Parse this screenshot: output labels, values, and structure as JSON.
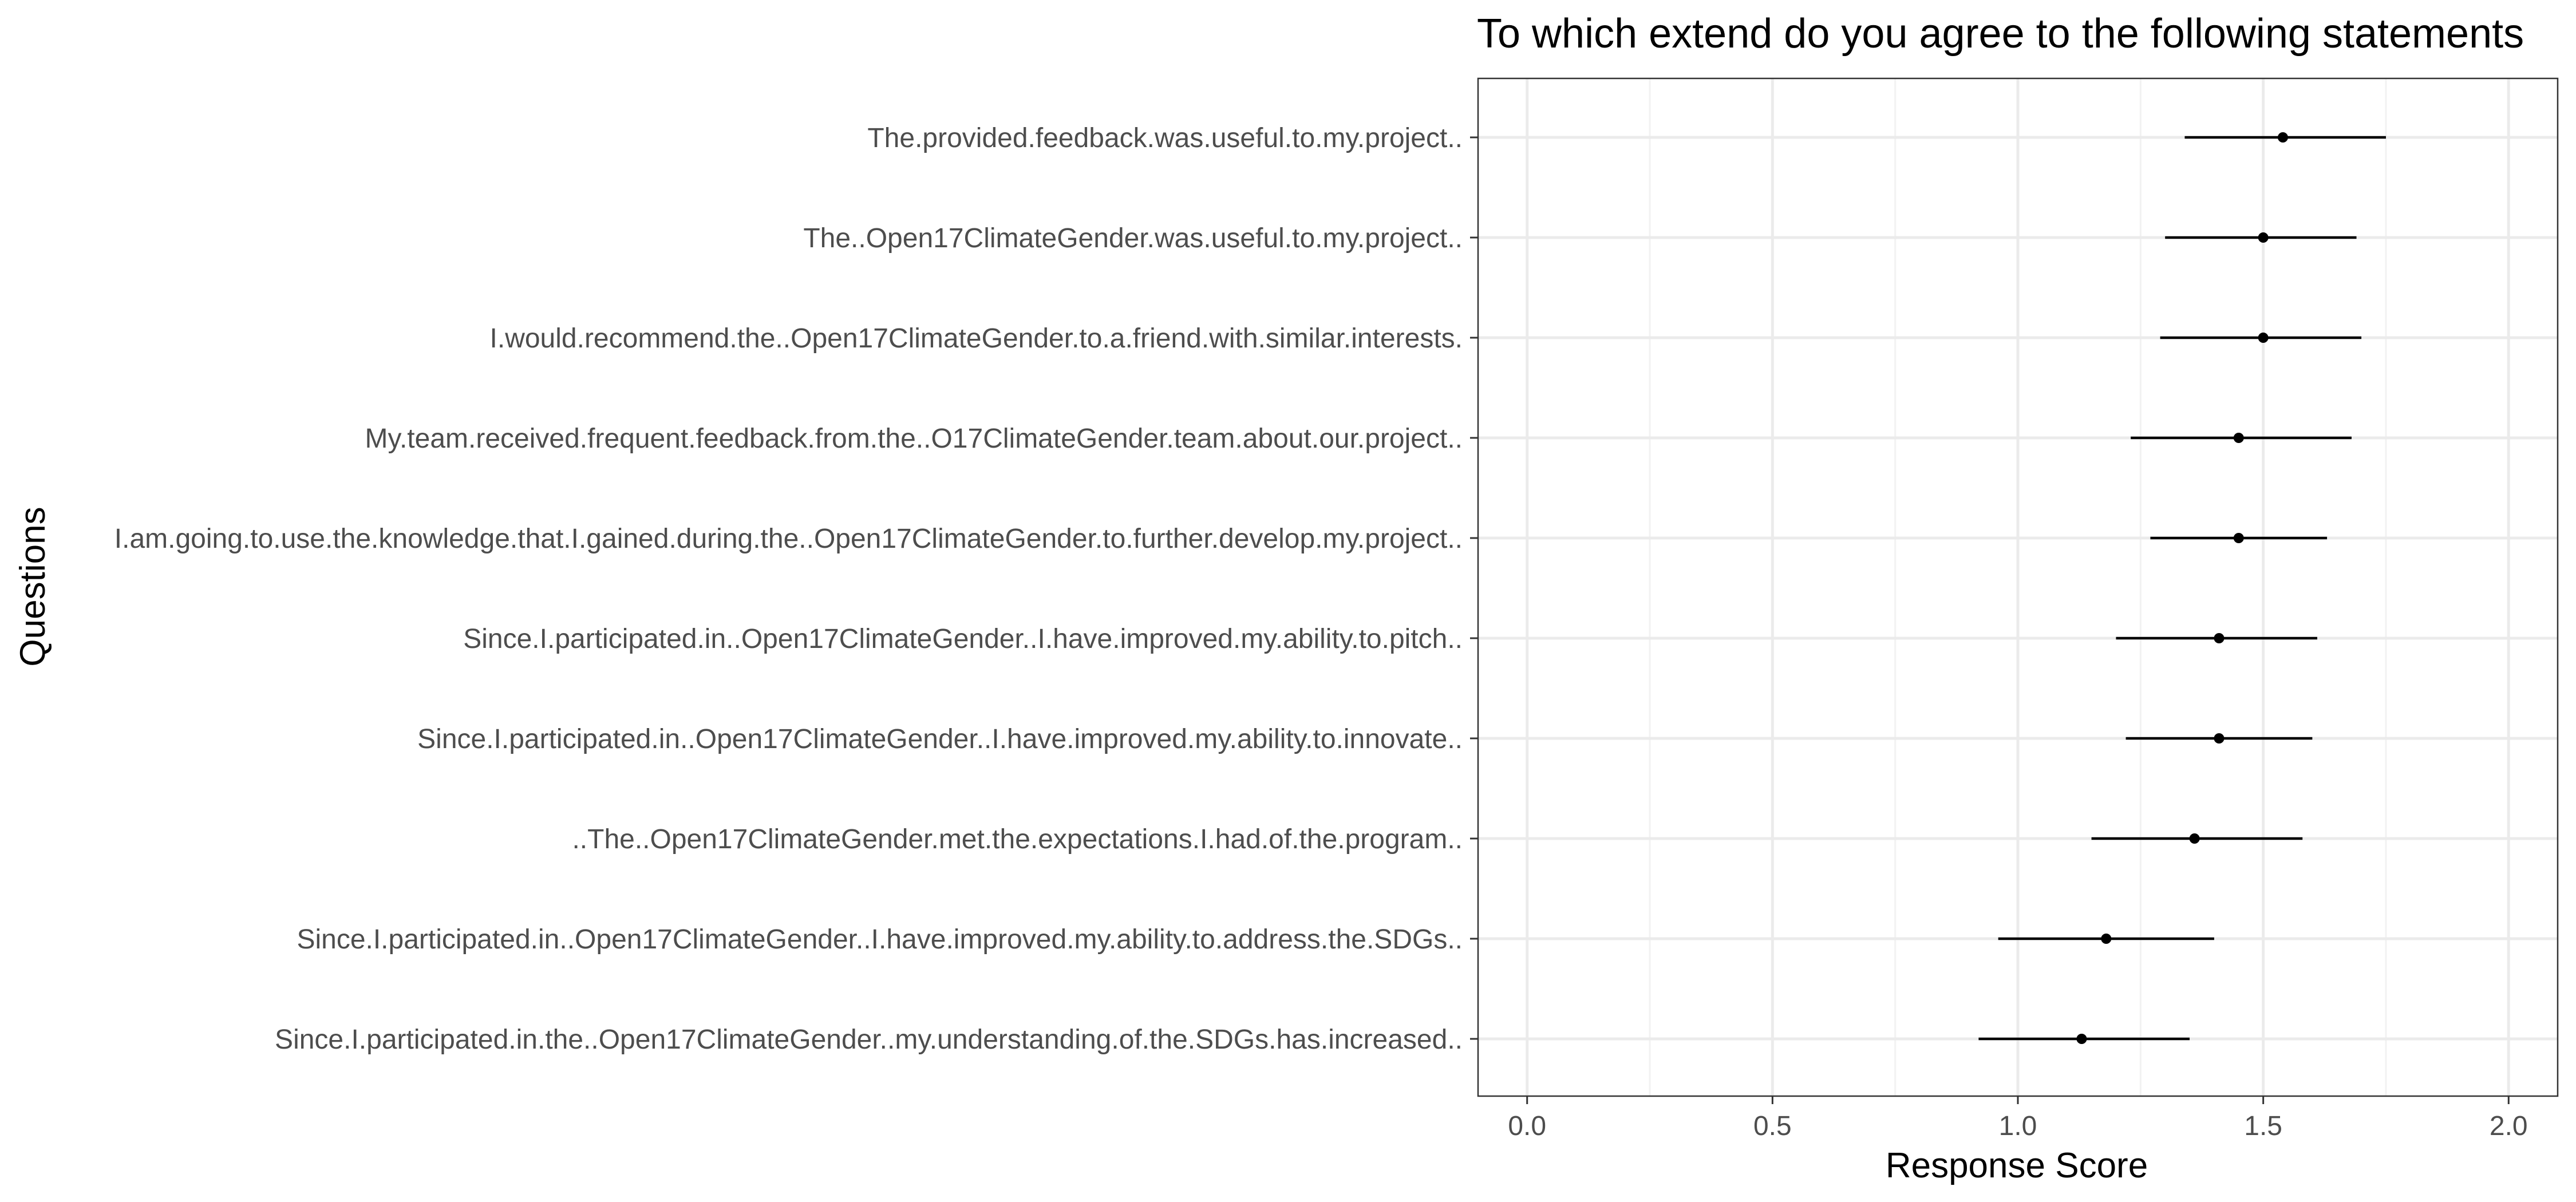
{
  "chart_data": {
    "type": "scatter",
    "title": "To which extend do you agree to the following statements",
    "xlabel": "Response Score",
    "ylabel": "Questions",
    "xlim": [
      -0.1,
      2.1
    ],
    "xticks": [
      0.0,
      0.5,
      1.0,
      1.5,
      2.0
    ],
    "xtick_labels": [
      "0.0",
      "0.5",
      "1.0",
      "1.5",
      "2.0"
    ],
    "grid": true,
    "legend": "none",
    "points": [
      {
        "category": "The.provided.feedback.was.useful.to.my.project..",
        "mean": 1.54,
        "low": 1.34,
        "high": 1.75
      },
      {
        "category": "The..Open17ClimateGender.was.useful.to.my.project..",
        "mean": 1.5,
        "low": 1.3,
        "high": 1.69
      },
      {
        "category": "I.would.recommend.the..Open17ClimateGender.to.a.friend.with.similar.interests.",
        "mean": 1.5,
        "low": 1.29,
        "high": 1.7
      },
      {
        "category": "My.team.received.frequent.feedback.from.the..O17ClimateGender.team.about.our.project..",
        "mean": 1.45,
        "low": 1.23,
        "high": 1.68
      },
      {
        "category": "I.am.going.to.use.the.knowledge.that.I.gained.during.the..Open17ClimateGender.to.further.develop.my.project..",
        "mean": 1.45,
        "low": 1.27,
        "high": 1.63
      },
      {
        "category": "Since.I.participated.in..Open17ClimateGender..I.have.improved.my.ability.to.pitch..",
        "mean": 1.41,
        "low": 1.2,
        "high": 1.61
      },
      {
        "category": "Since.I.participated.in..Open17ClimateGender..I.have.improved.my.ability.to.innovate..",
        "mean": 1.41,
        "low": 1.22,
        "high": 1.6
      },
      {
        "category": "..The..Open17ClimateGender.met.the.expectations.I.had.of.the.program..",
        "mean": 1.36,
        "low": 1.15,
        "high": 1.58
      },
      {
        "category": "Since.I.participated.in..Open17ClimateGender..I.have.improved.my.ability.to.address.the.SDGs..",
        "mean": 1.18,
        "low": 0.96,
        "high": 1.4
      },
      {
        "category": "Since.I.participated.in.the..Open17ClimateGender..my.understanding.of.the.SDGs.has.increased..",
        "mean": 1.13,
        "low": 0.92,
        "high": 1.35
      }
    ],
    "colors": {
      "point": "#000000",
      "errorbar": "#000000",
      "grid_major": "#ebebeb",
      "grid_minor": "#f2f2f2",
      "panel_border": "#333333",
      "tick_text": "#4d4d4d",
      "background": "#ffffff"
    }
  }
}
